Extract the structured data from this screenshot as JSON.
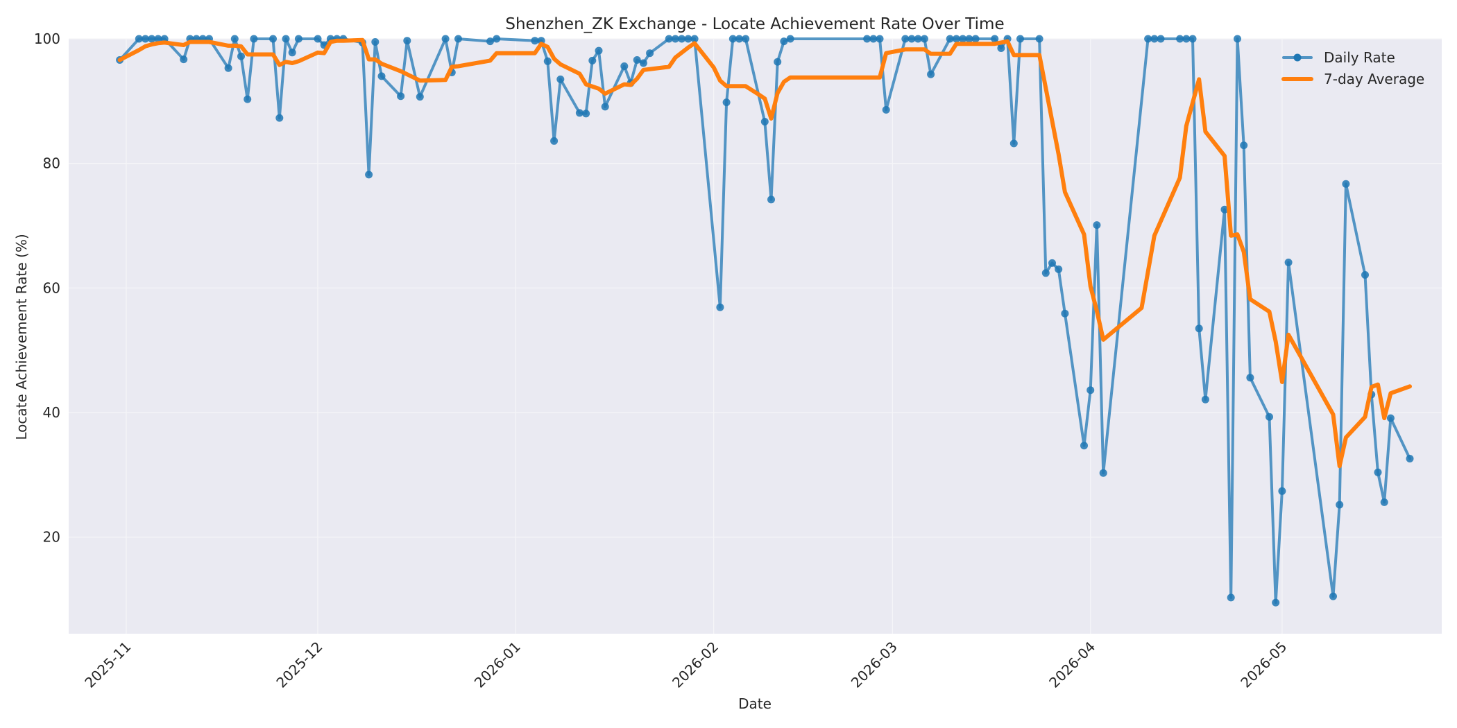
{
  "chart_data": {
    "type": "line",
    "title": "Shenzhen_ZK Exchange - Locate Achievement Rate Over Time",
    "xlabel": "Date",
    "ylabel": "Locate Achievement Rate (%)",
    "x_axis": {
      "min": "2025-10-23",
      "max": "2026-05-26",
      "ticks": [
        "2025-11-01",
        "2025-12-01",
        "2026-01-01",
        "2026-02-01",
        "2026-03-01",
        "2026-04-01",
        "2026-05-01"
      ],
      "tick_labels": [
        "2025-11",
        "2025-12",
        "2026-01",
        "2026-02",
        "2026-03",
        "2026-04",
        "2026-05"
      ],
      "tick_rotation_deg": 45
    },
    "y_axis": {
      "min": 4.5,
      "max": 100,
      "ticks": [
        20,
        40,
        60,
        80,
        100
      ],
      "tick_labels": [
        "20",
        "40",
        "60",
        "80",
        "100"
      ]
    },
    "grid": true,
    "legend_position": "top-right",
    "colors": {
      "plot_background": "#EAEAF2",
      "grid": "#F5F5F8",
      "text": "#262626"
    },
    "series": [
      {
        "name": "Daily Rate",
        "style": "line-with-markers",
        "color": "#1F77B4",
        "points": [
          [
            "2025-10-31",
            96.6
          ],
          [
            "2025-11-03",
            100
          ],
          [
            "2025-11-04",
            100
          ],
          [
            "2025-11-05",
            100
          ],
          [
            "2025-11-06",
            100
          ],
          [
            "2025-11-07",
            100
          ],
          [
            "2025-11-10",
            96.7
          ],
          [
            "2025-11-11",
            100
          ],
          [
            "2025-11-12",
            100
          ],
          [
            "2025-11-13",
            100
          ],
          [
            "2025-11-14",
            100
          ],
          [
            "2025-11-17",
            95.3
          ],
          [
            "2025-11-18",
            100
          ],
          [
            "2025-11-19",
            97.2
          ],
          [
            "2025-11-20",
            90.3
          ],
          [
            "2025-11-21",
            100
          ],
          [
            "2025-11-24",
            100
          ],
          [
            "2025-11-25",
            87.3
          ],
          [
            "2025-11-26",
            100
          ],
          [
            "2025-11-27",
            97.8
          ],
          [
            "2025-11-28",
            100
          ],
          [
            "2025-12-01",
            100
          ],
          [
            "2025-12-02",
            99.0
          ],
          [
            "2025-12-03",
            100
          ],
          [
            "2025-12-04",
            100
          ],
          [
            "2025-12-05",
            100
          ],
          [
            "2025-12-08",
            99.4
          ],
          [
            "2025-12-09",
            78.2
          ],
          [
            "2025-12-10",
            99.5
          ],
          [
            "2025-12-11",
            94.0
          ],
          [
            "2025-12-14",
            90.8
          ],
          [
            "2025-12-15",
            99.7
          ],
          [
            "2025-12-17",
            90.7
          ],
          [
            "2025-12-21",
            100
          ],
          [
            "2025-12-22",
            94.6
          ],
          [
            "2025-12-23",
            100
          ],
          [
            "2025-12-28",
            99.6
          ],
          [
            "2025-12-29",
            100
          ],
          [
            "2026-01-04",
            99.7
          ],
          [
            "2026-01-05",
            99.7
          ],
          [
            "2026-01-06",
            96.4
          ],
          [
            "2026-01-07",
            83.6
          ],
          [
            "2026-01-08",
            93.5
          ],
          [
            "2026-01-11",
            88.1
          ],
          [
            "2026-01-12",
            88.0
          ],
          [
            "2026-01-13",
            96.5
          ],
          [
            "2026-01-14",
            98.1
          ],
          [
            "2026-01-15",
            89.1
          ],
          [
            "2026-01-18",
            95.6
          ],
          [
            "2026-01-19",
            92.9
          ],
          [
            "2026-01-20",
            96.6
          ],
          [
            "2026-01-21",
            96.1
          ],
          [
            "2026-01-22",
            97.7
          ],
          [
            "2026-01-25",
            100
          ],
          [
            "2026-01-26",
            100
          ],
          [
            "2026-01-27",
            100
          ],
          [
            "2026-01-28",
            100
          ],
          [
            "2026-01-29",
            100
          ],
          [
            "2026-02-02",
            56.9
          ],
          [
            "2026-02-03",
            89.8
          ],
          [
            "2026-02-04",
            100
          ],
          [
            "2026-02-05",
            100
          ],
          [
            "2026-02-06",
            100
          ],
          [
            "2026-02-09",
            86.7
          ],
          [
            "2026-02-10",
            74.2
          ],
          [
            "2026-02-11",
            96.3
          ],
          [
            "2026-02-12",
            99.6
          ],
          [
            "2026-02-13",
            100
          ],
          [
            "2026-02-25",
            100
          ],
          [
            "2026-02-26",
            100
          ],
          [
            "2026-02-27",
            100
          ],
          [
            "2026-02-28",
            88.6
          ],
          [
            "2026-03-03",
            100
          ],
          [
            "2026-03-04",
            100
          ],
          [
            "2026-03-05",
            100
          ],
          [
            "2026-03-06",
            100
          ],
          [
            "2026-03-07",
            94.3
          ],
          [
            "2026-03-10",
            100
          ],
          [
            "2026-03-11",
            100
          ],
          [
            "2026-03-12",
            100
          ],
          [
            "2026-03-13",
            100
          ],
          [
            "2026-03-14",
            100
          ],
          [
            "2026-03-17",
            100
          ],
          [
            "2026-03-18",
            98.5
          ],
          [
            "2026-03-19",
            100
          ],
          [
            "2026-03-20",
            83.2
          ],
          [
            "2026-03-21",
            100
          ],
          [
            "2026-03-24",
            100
          ],
          [
            "2026-03-25",
            62.4
          ],
          [
            "2026-03-26",
            64.0
          ],
          [
            "2026-03-27",
            63.0
          ],
          [
            "2026-03-28",
            55.9
          ],
          [
            "2026-03-31",
            34.7
          ],
          [
            "2026-04-01",
            43.6
          ],
          [
            "2026-04-02",
            70.1
          ],
          [
            "2026-04-03",
            30.3
          ],
          [
            "2026-04-10",
            100
          ],
          [
            "2026-04-11",
            100
          ],
          [
            "2026-04-12",
            100
          ],
          [
            "2026-04-15",
            100
          ],
          [
            "2026-04-16",
            100
          ],
          [
            "2026-04-17",
            100
          ],
          [
            "2026-04-18",
            53.5
          ],
          [
            "2026-04-19",
            42.1
          ],
          [
            "2026-04-22",
            72.6
          ],
          [
            "2026-04-23",
            10.3
          ],
          [
            "2026-04-24",
            100
          ],
          [
            "2026-04-25",
            82.9
          ],
          [
            "2026-04-26",
            45.6
          ],
          [
            "2026-04-29",
            39.3
          ],
          [
            "2026-04-30",
            9.5
          ],
          [
            "2026-05-01",
            27.4
          ],
          [
            "2026-05-02",
            64.1
          ],
          [
            "2026-05-09",
            10.5
          ],
          [
            "2026-05-10",
            25.2
          ],
          [
            "2026-05-11",
            76.7
          ],
          [
            "2026-05-14",
            62.1
          ],
          [
            "2026-05-15",
            42.9
          ],
          [
            "2026-05-16",
            30.4
          ],
          [
            "2026-05-17",
            25.6
          ],
          [
            "2026-05-18",
            39.1
          ],
          [
            "2026-05-21",
            32.6
          ]
        ]
      },
      {
        "name": "7-day Average",
        "style": "line",
        "color": "#FF7F0E",
        "points": [
          [
            "2025-10-31",
            96.6
          ],
          [
            "2025-11-03",
            98.2
          ],
          [
            "2025-11-04",
            98.8
          ],
          [
            "2025-11-05",
            99.1
          ],
          [
            "2025-11-06",
            99.3
          ],
          [
            "2025-11-07",
            99.4
          ],
          [
            "2025-11-10",
            99.0
          ],
          [
            "2025-11-11",
            99.5
          ],
          [
            "2025-11-12",
            99.5
          ],
          [
            "2025-11-13",
            99.5
          ],
          [
            "2025-11-14",
            99.5
          ],
          [
            "2025-11-17",
            98.9
          ],
          [
            "2025-11-18",
            98.9
          ],
          [
            "2025-11-19",
            98.8
          ],
          [
            "2025-11-20",
            97.5
          ],
          [
            "2025-11-21",
            97.5
          ],
          [
            "2025-11-24",
            97.5
          ],
          [
            "2025-11-25",
            95.8
          ],
          [
            "2025-11-26",
            96.3
          ],
          [
            "2025-11-27",
            96.1
          ],
          [
            "2025-11-28",
            96.4
          ],
          [
            "2025-12-01",
            97.8
          ],
          [
            "2025-12-02",
            97.7
          ],
          [
            "2025-12-03",
            99.5
          ],
          [
            "2025-12-04",
            99.7
          ],
          [
            "2025-12-05",
            99.7
          ],
          [
            "2025-12-08",
            99.8
          ],
          [
            "2025-12-09",
            96.7
          ],
          [
            "2025-12-10",
            96.7
          ],
          [
            "2025-12-11",
            96.0
          ],
          [
            "2025-12-14",
            94.8
          ],
          [
            "2025-12-15",
            94.3
          ],
          [
            "2025-12-17",
            93.3
          ],
          [
            "2025-12-21",
            93.4
          ],
          [
            "2025-12-22",
            95.5
          ],
          [
            "2025-12-23",
            95.6
          ],
          [
            "2025-12-28",
            96.5
          ],
          [
            "2025-12-29",
            97.7
          ],
          [
            "2026-01-04",
            97.7
          ],
          [
            "2026-01-05",
            99.2
          ],
          [
            "2026-01-06",
            98.7
          ],
          [
            "2026-01-07",
            96.8
          ],
          [
            "2026-01-08",
            95.9
          ],
          [
            "2026-01-11",
            94.4
          ],
          [
            "2026-01-12",
            92.7
          ],
          [
            "2026-01-14",
            92.0
          ],
          [
            "2026-01-15",
            91.2
          ],
          [
            "2026-01-18",
            92.7
          ],
          [
            "2026-01-19",
            92.6
          ],
          [
            "2026-01-20",
            93.6
          ],
          [
            "2026-01-21",
            95.0
          ],
          [
            "2026-01-25",
            95.5
          ],
          [
            "2026-01-26",
            97.0
          ],
          [
            "2026-01-28",
            98.6
          ],
          [
            "2026-01-29",
            99.3
          ],
          [
            "2026-02-01",
            95.4
          ],
          [
            "2026-02-02",
            93.3
          ],
          [
            "2026-02-03",
            92.4
          ],
          [
            "2026-02-06",
            92.4
          ],
          [
            "2026-02-08",
            91.1
          ],
          [
            "2026-02-09",
            90.4
          ],
          [
            "2026-02-10",
            87.2
          ],
          [
            "2026-02-11",
            91.3
          ],
          [
            "2026-02-12",
            93.1
          ],
          [
            "2026-02-13",
            93.8
          ],
          [
            "2026-02-27",
            93.8
          ],
          [
            "2026-02-28",
            97.7
          ],
          [
            "2026-03-03",
            98.3
          ],
          [
            "2026-03-06",
            98.3
          ],
          [
            "2026-03-07",
            97.6
          ],
          [
            "2026-03-10",
            97.6
          ],
          [
            "2026-03-11",
            99.2
          ],
          [
            "2026-03-17",
            99.2
          ],
          [
            "2026-03-18",
            99.4
          ],
          [
            "2026-03-19",
            99.6
          ],
          [
            "2026-03-20",
            97.4
          ],
          [
            "2026-03-24",
            97.4
          ],
          [
            "2026-03-27",
            81.5
          ],
          [
            "2026-03-28",
            75.4
          ],
          [
            "2026-03-31",
            68.6
          ],
          [
            "2026-04-01",
            60.3
          ],
          [
            "2026-04-02",
            56.3
          ],
          [
            "2026-04-03",
            51.7
          ],
          [
            "2026-04-09",
            56.8
          ],
          [
            "2026-04-11",
            68.4
          ],
          [
            "2026-04-15",
            77.7
          ],
          [
            "2026-04-16",
            86.0
          ],
          [
            "2026-04-18",
            93.5
          ],
          [
            "2026-04-19",
            85.1
          ],
          [
            "2026-04-22",
            81.2
          ],
          [
            "2026-04-23",
            68.4
          ],
          [
            "2026-04-24",
            68.6
          ],
          [
            "2026-04-25",
            65.8
          ],
          [
            "2026-04-26",
            58.2
          ],
          [
            "2026-04-29",
            56.2
          ],
          [
            "2026-04-30",
            51.4
          ],
          [
            "2026-05-01",
            44.9
          ],
          [
            "2026-05-02",
            52.5
          ],
          [
            "2026-05-09",
            39.7
          ],
          [
            "2026-05-10",
            31.4
          ],
          [
            "2026-05-11",
            36.0
          ],
          [
            "2026-05-14",
            39.3
          ],
          [
            "2026-05-15",
            44.1
          ],
          [
            "2026-05-16",
            44.5
          ],
          [
            "2026-05-17",
            39.1
          ],
          [
            "2026-05-18",
            43.1
          ],
          [
            "2026-05-21",
            44.2
          ]
        ]
      }
    ]
  }
}
